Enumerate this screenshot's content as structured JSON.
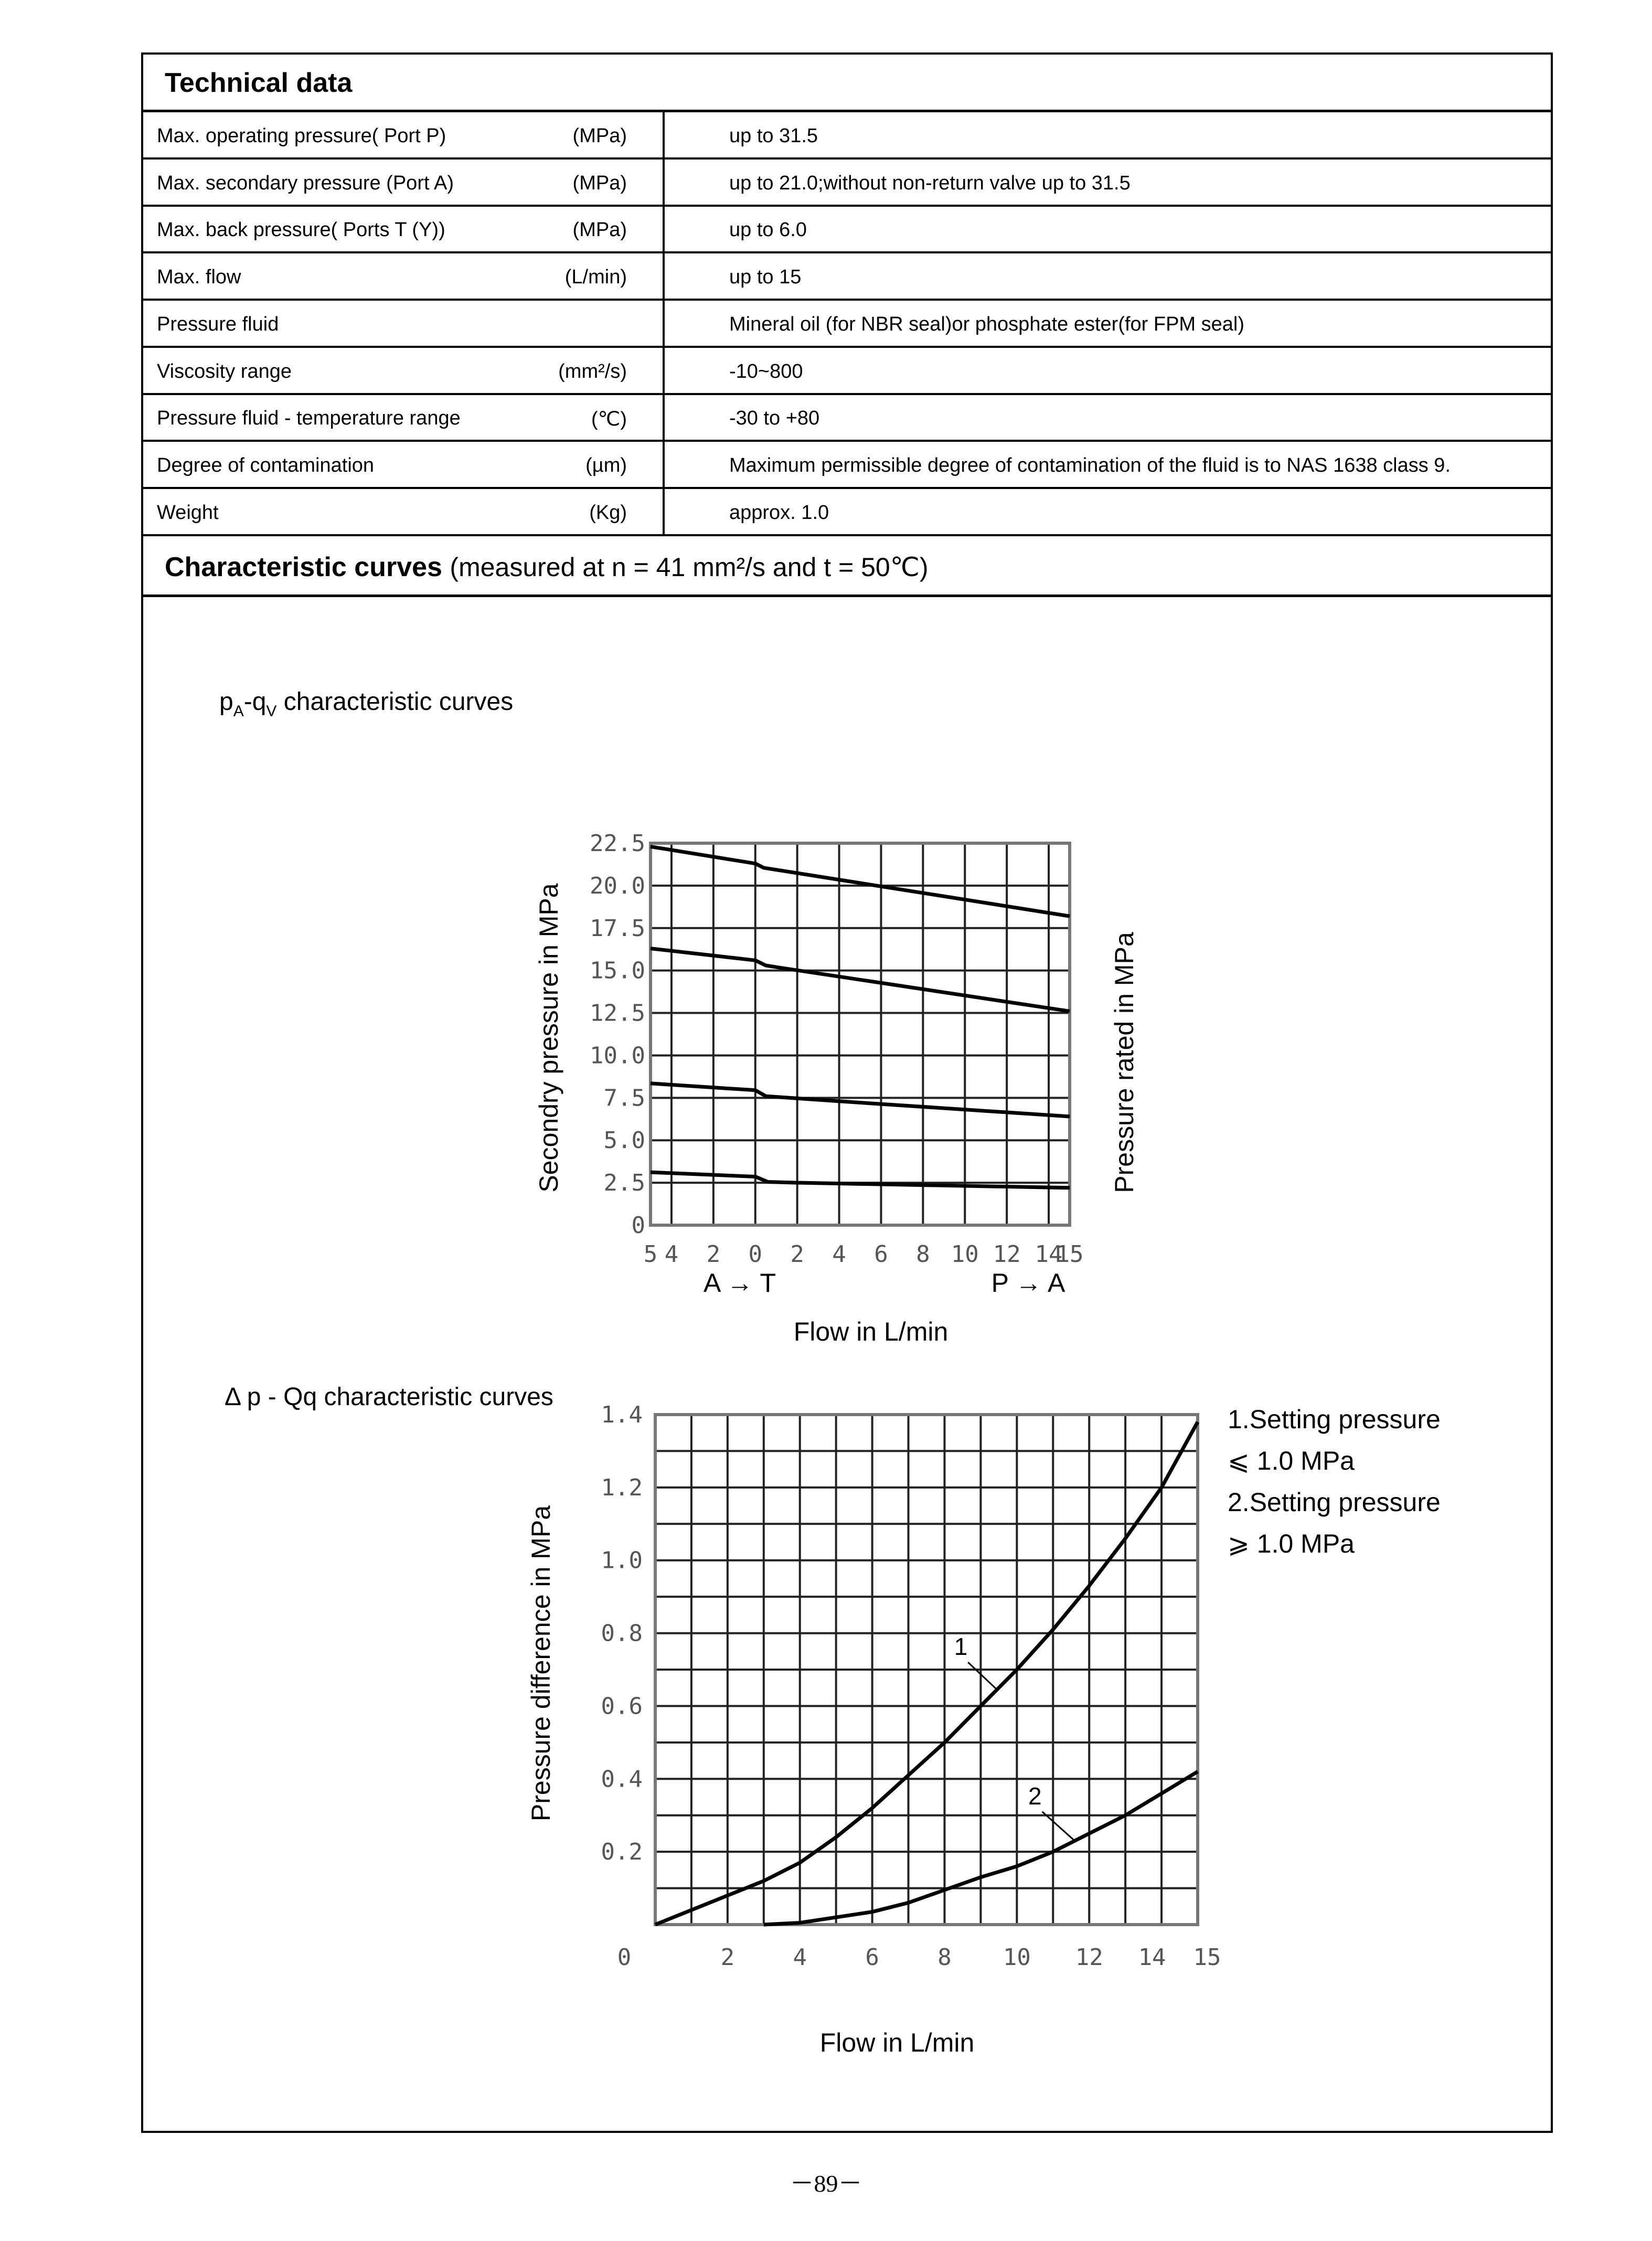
{
  "technical_data": {
    "title": "Technical data",
    "rows": [
      {
        "param": "Max. operating pressure( Port P)",
        "unit": "(MPa)",
        "value": "up to 31.5"
      },
      {
        "param": "Max. secondary pressure (Port A)",
        "unit": "(MPa)",
        "value": "up to 21.0;without non-return valve up to 31.5"
      },
      {
        "param": "Max. back pressure( Ports T (Y))",
        "unit": "(MPa)",
        "value": "up to 6.0"
      },
      {
        "param": "Max. flow",
        "unit": "(L/min)",
        "value": "up to 15"
      },
      {
        "param": "Pressure fluid",
        "unit": "",
        "value": "Mineral oil (for NBR seal)or phosphate ester(for FPM seal)"
      },
      {
        "param": "Viscosity range",
        "unit": "(mm²/s)",
        "value": "-10~800"
      },
      {
        "param": "Pressure fluid - temperature range",
        "unit": "(℃)",
        "value": "-30 to +80"
      },
      {
        "param": "Degree of contamination",
        "unit": "(µm)",
        "value": "Maximum permissible degree of contamination of the fluid is to NAS 1638 class 9."
      },
      {
        "param": "Weight",
        "unit": "(Kg)",
        "value": "approx. 1.0"
      }
    ]
  },
  "characteristic_curves": {
    "title": "Characteristic curves",
    "condition": "(measured at n = 41 mm²/s and t = 50℃)"
  },
  "chart_data": [
    {
      "type": "line",
      "title_p": "p",
      "title_sub1": "A",
      "title_dash": "-q",
      "title_sub2": "V",
      "title_rest": " characteristic curves",
      "ylabel": "Secondry pressure  in MPa",
      "ylabel_right": "Pressure rated   in MPa",
      "xlabel": "Flow in L/min",
      "direction_left": "A → T",
      "direction_right": "P → A",
      "xlim": [
        -5,
        15
      ],
      "ylim": [
        0,
        22.5
      ],
      "grid": true,
      "yticks": [
        "0",
        "2.5",
        "5.0",
        "7.5",
        "10.0",
        "12.5",
        "15.0",
        "17.5",
        "20.0",
        "22.5"
      ],
      "xticks": [
        {
          "value": -5,
          "label": "5"
        },
        {
          "value": -4,
          "label": "4"
        },
        {
          "value": -2,
          "label": "2"
        },
        {
          "value": 0,
          "label": "0"
        },
        {
          "value": 2,
          "label": "2"
        },
        {
          "value": 4,
          "label": "4"
        },
        {
          "value": 6,
          "label": "6"
        },
        {
          "value": 8,
          "label": "8"
        },
        {
          "value": 10,
          "label": "10"
        },
        {
          "value": 12,
          "label": "12"
        },
        {
          "value": 14,
          "label": "14"
        },
        {
          "value": 15,
          "label": "15"
        }
      ],
      "series": [
        {
          "points": [
            [
              -5,
              22.3
            ],
            [
              0,
              21.3
            ],
            [
              0.4,
              21.05
            ],
            [
              15,
              18.2
            ]
          ]
        },
        {
          "points": [
            [
              -5,
              16.3
            ],
            [
              0,
              15.6
            ],
            [
              0.5,
              15.3
            ],
            [
              1,
              15.2
            ],
            [
              15,
              12.6
            ]
          ]
        },
        {
          "points": [
            [
              -5,
              8.35
            ],
            [
              0,
              7.95
            ],
            [
              0.5,
              7.6
            ],
            [
              2,
              7.47
            ],
            [
              4,
              7.3
            ],
            [
              15,
              6.4
            ]
          ]
        },
        {
          "points": [
            [
              -5,
              3.12
            ],
            [
              0,
              2.86
            ],
            [
              0.6,
              2.55
            ],
            [
              2,
              2.5
            ],
            [
              15,
              2.2
            ]
          ]
        }
      ]
    },
    {
      "type": "line",
      "title": "Δ p - Qq characteristic curves",
      "ylabel": "Pressure difference in MPa",
      "xlabel": "Flow in L/min",
      "xlim": [
        0,
        15
      ],
      "ylim": [
        0,
        1.4
      ],
      "grid": true,
      "yticks": [
        "0.2",
        "0.4",
        "0.6",
        "0.8",
        "1.0",
        "1.2",
        "1.4"
      ],
      "origin_label": "0",
      "xticks": [
        {
          "value": 2,
          "label": "2"
        },
        {
          "value": 4,
          "label": "4"
        },
        {
          "value": 6,
          "label": "6"
        },
        {
          "value": 8,
          "label": "8"
        },
        {
          "value": 10,
          "label": "10"
        },
        {
          "value": 12,
          "label": "12"
        },
        {
          "value": 14,
          "label": "14"
        },
        {
          "value": 15,
          "label": "15"
        }
      ],
      "legend": [
        "1.Setting pressure",
        "⩽ 1.0 MPa",
        "2.Setting pressure",
        "⩾ 1.0 MPa"
      ],
      "legend_placement": "right",
      "series": [
        {
          "name": "1",
          "points": [
            [
              0,
              0
            ],
            [
              1,
              0.04
            ],
            [
              2,
              0.08
            ],
            [
              3,
              0.12
            ],
            [
              4,
              0.17
            ],
            [
              5,
              0.24
            ],
            [
              6,
              0.32
            ],
            [
              7,
              0.41
            ],
            [
              8,
              0.5
            ],
            [
              9,
              0.6
            ],
            [
              10,
              0.7
            ],
            [
              11,
              0.81
            ],
            [
              12,
              0.93
            ],
            [
              13,
              1.06
            ],
            [
              14,
              1.2
            ],
            [
              15,
              1.38
            ]
          ]
        },
        {
          "name": "2",
          "points": [
            [
              3,
              0
            ],
            [
              4,
              0.005
            ],
            [
              5,
              0.02
            ],
            [
              6,
              0.035
            ],
            [
              7,
              0.06
            ],
            [
              8,
              0.095
            ],
            [
              9,
              0.13
            ],
            [
              10,
              0.16
            ],
            [
              11,
              0.2
            ],
            [
              12,
              0.25
            ],
            [
              13,
              0.3
            ],
            [
              14,
              0.36
            ],
            [
              15,
              0.42
            ]
          ]
        }
      ]
    }
  ],
  "footer": {
    "page_number": "－89－"
  }
}
